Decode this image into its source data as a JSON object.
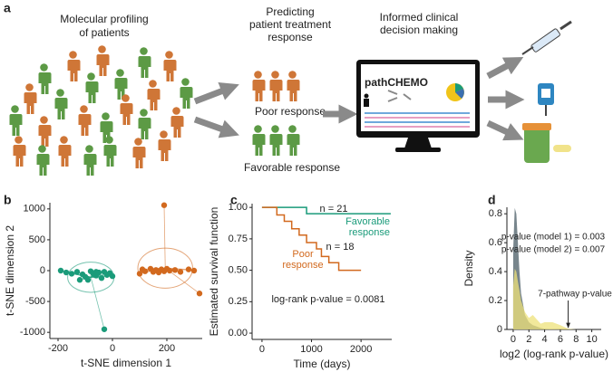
{
  "diagram": {
    "panel_label": "a",
    "profiling": [
      "Molecular profiling",
      "of patients"
    ],
    "predicting": [
      "Predicting",
      "patient treatment",
      "response"
    ],
    "decision": [
      "Informed clinical",
      "decision making"
    ],
    "poor": "Poor response",
    "favorable": "Favorable response",
    "app": "pathCHEMO"
  },
  "chart_data": [
    {
      "type": "scatter",
      "panel_label": "b",
      "xlabel": "t-SNE dimension 1",
      "ylabel": "t-SNE dimension 2",
      "xlim": [
        -230,
        330
      ],
      "ylim": [
        -1100,
        1100
      ],
      "xticks": [
        -200,
        0,
        200
      ],
      "yticks": [
        -1000,
        -500,
        0,
        500,
        1000
      ],
      "series": [
        {
          "color": "#1a9b7a",
          "x": [
            -190,
            -170,
            -150,
            -130,
            -110,
            -100,
            -80,
            -70,
            -60,
            -50,
            -40,
            -30,
            -20,
            -10,
            0,
            -90,
            -30,
            -120,
            -60
          ],
          "values": [
            0,
            -30,
            -50,
            -20,
            -60,
            -100,
            -10,
            -50,
            -80,
            -30,
            -120,
            -20,
            -70,
            -40,
            -90,
            -150,
            -950,
            -150,
            -20
          ]
        },
        {
          "color": "#d2691e",
          "x": [
            100,
            110,
            120,
            140,
            150,
            160,
            170,
            180,
            190,
            200,
            210,
            230,
            250,
            280,
            300,
            190,
            320
          ],
          "values": [
            -50,
            20,
            -10,
            30,
            -20,
            10,
            -30,
            20,
            -10,
            30,
            0,
            10,
            -20,
            20,
            0,
            1060,
            -370
          ]
        }
      ]
    },
    {
      "type": "step",
      "panel_label": "c",
      "xlabel": "Time (days)",
      "ylabel": "Estimated survival function",
      "xlim": [
        -200,
        2620
      ],
      "ylim": [
        -0.05,
        1.03
      ],
      "xticks": [
        0,
        1000,
        2000
      ],
      "yticks": [
        {
          "value": 0,
          "label": "0.00"
        },
        {
          "value": 0.25,
          "label": "0.25"
        },
        {
          "value": 0.5,
          "label": "0.50"
        },
        {
          "value": 0.75,
          "label": "0.75"
        },
        {
          "value": 1,
          "label": "1.00"
        }
      ],
      "series": [
        {
          "color": "#1a9b7a",
          "x": [
            0,
            900,
            2600
          ],
          "values": [
            1,
            0.95,
            0.95
          ]
        },
        {
          "color": "#d2691e",
          "x": [
            0,
            300,
            450,
            600,
            750,
            900,
            1100,
            1200,
            1350,
            1550,
            2000
          ],
          "values": [
            1,
            0.94,
            0.89,
            0.83,
            0.78,
            0.72,
            0.67,
            0.61,
            0.56,
            0.5,
            0.5
          ]
        }
      ],
      "annotations": [
        "n = 21",
        "Favorable",
        "response",
        "n = 18",
        "Poor",
        "response",
        "log-rank p-value = 0.0081"
      ]
    },
    {
      "type": "area",
      "panel_label": "d",
      "xlabel": "log2 (log-rank p-value)",
      "ylabel": "Density",
      "xlim": [
        -0.8,
        11.2
      ],
      "ylim": [
        0,
        0.845
      ],
      "xticks": [
        0,
        2,
        4,
        6,
        8,
        10
      ],
      "yticks": [
        0,
        0.2,
        0.4,
        0.6,
        0.8
      ],
      "x": [
        0,
        0.2,
        0.4,
        0.6,
        0.8,
        1,
        1.5,
        2,
        2.5,
        3,
        3.5,
        4,
        5,
        6,
        7,
        8
      ],
      "series": [
        {
          "color": "#5f7078",
          "values": [
            0.55,
            0.84,
            0.8,
            0.6,
            0.4,
            0.25,
            0.1,
            0.05,
            0.03,
            0.02,
            0.01,
            0.005,
            0.002,
            0,
            0,
            0
          ]
        },
        {
          "color": "#ede27a",
          "values": [
            0.3,
            0.42,
            0.4,
            0.33,
            0.27,
            0.2,
            0.12,
            0.08,
            0.1,
            0.07,
            0.04,
            0.05,
            0.05,
            0.03,
            0.005,
            0
          ]
        }
      ],
      "annotations": [
        "p-value (model 1) = 0.003",
        "p-value (model 2) = 0.007",
        "7-pathway p-value"
      ],
      "arrow_x": 7
    }
  ]
}
